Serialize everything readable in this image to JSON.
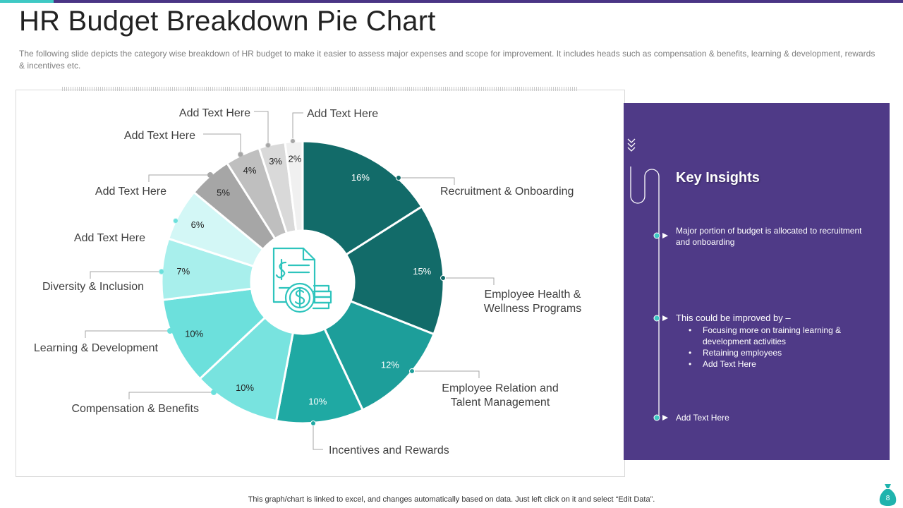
{
  "slide": {
    "title": "HR Budget Breakdown Pie Chart",
    "description": "The following  slide depicts the category wise breakdown  of HR budget to make it easier to assess major expenses and scope for improvement.  It includes heads such as compensation & benefits, learning & development,  rewards & incentives etc.",
    "footer_note": "This graph/chart is linked to excel,  and changes automatically based on data. Just left click on it and select “Edit Data”.",
    "page_number": "8"
  },
  "colors": {
    "accent_purple": "#4f3a87",
    "accent_teal": "#3fc9c4",
    "leader_line": "#a6a6a6"
  },
  "icons": {
    "center": "budget-document-coins-icon",
    "page_badge": "money-bag-icon"
  },
  "chart_data": {
    "type": "pie",
    "title": "",
    "center_icon": "budget-document-coins-icon",
    "slices": [
      {
        "label": "Recruitment & Onboarding",
        "value": 16,
        "value_label": "16%",
        "color": "#126b69"
      },
      {
        "label": "Employee Health & Wellness Programs",
        "value": 15,
        "value_label": "15%",
        "color": "#126b69"
      },
      {
        "label": "Employee Relation and Talent Management",
        "value": 12,
        "value_label": "12%",
        "color": "#1d9e9a"
      },
      {
        "label": "Incentives and Rewards",
        "value": 10,
        "value_label": "10%",
        "color": "#1fa9a3"
      },
      {
        "label": "Compensation & Benefits",
        "value": 10,
        "value_label": "10%",
        "color": "#78e3df"
      },
      {
        "label": "Learning & Development",
        "value": 10,
        "value_label": "10%",
        "color": "#6ce0dc"
      },
      {
        "label": "Diversity & Inclusion",
        "value": 7,
        "value_label": "7%",
        "color": "#a8efec"
      },
      {
        "label": "Add Text Here",
        "value": 6,
        "value_label": "6%",
        "color": "#d3f7f6"
      },
      {
        "label": "Add Text Here",
        "value": 5,
        "value_label": "5%",
        "color": "#a6a6a6"
      },
      {
        "label": "Add Text Here",
        "value": 4,
        "value_label": "4%",
        "color": "#bfbfbf"
      },
      {
        "label": "Add Text Here",
        "value": 3,
        "value_label": "3%",
        "color": "#d9d9d9"
      },
      {
        "label": "Add Text Here",
        "value": 2,
        "value_label": "2%",
        "color": "#f0f0f0"
      }
    ]
  },
  "insights": {
    "title": "Key Insights",
    "items": [
      {
        "text": "Major portion of budget is allocated to recruitment and onboarding"
      },
      {
        "text": "This could be improved by –",
        "bullets": [
          "Focusing more on training learning & development  activities",
          "Retaining employees",
          "Add Text Here"
        ]
      },
      {
        "text": "Add Text Here"
      }
    ]
  }
}
